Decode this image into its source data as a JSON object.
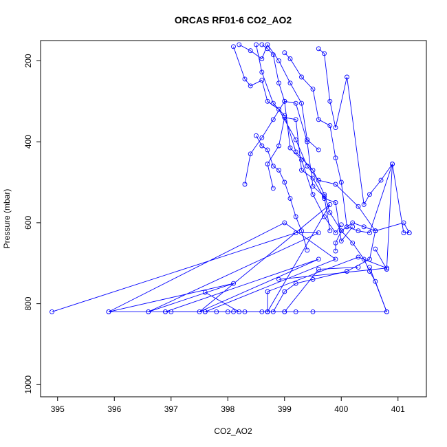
{
  "chart_data": {
    "type": "scatter",
    "title": "ORCAS RF01-6 CO2_AO2",
    "xlabel": "CO2_AO2",
    "ylabel": "Pressure (mbar)",
    "xlim": [
      394.7,
      401.5
    ],
    "ylim": [
      1030,
      150
    ],
    "y_reversed": true,
    "x_ticks": [
      395,
      396,
      397,
      398,
      399,
      400,
      401
    ],
    "x_tick_labels": [
      "395",
      "396",
      "397",
      "398",
      "399",
      "400",
      "401"
    ],
    "y_ticks": [
      200,
      400,
      600,
      800,
      1000
    ],
    "y_tick_labels": [
      "200",
      "400",
      "600",
      "800",
      "1000"
    ],
    "grid": false,
    "legend": "none",
    "color": "#0000ff",
    "series": [
      {
        "x": [
          398.1,
          398.3,
          398.4,
          398.6,
          398.7,
          398.9,
          399.2,
          399.4,
          399.6,
          399.9,
          400.3,
          400.6,
          401.1,
          401.2
        ],
        "y": [
          165,
          245,
          262,
          248,
          300,
          320,
          395,
          460,
          495,
          505,
          560,
          620,
          600,
          625
        ]
      },
      {
        "x": [
          398.5,
          398.6,
          398.8,
          399.0,
          399.2,
          399.5,
          399.7,
          399.8,
          400.0,
          400.2,
          400.4,
          400.5,
          400.6,
          400.8
        ],
        "y": [
          160,
          228,
          305,
          335,
          425,
          470,
          530,
          575,
          620,
          650,
          690,
          720,
          745,
          820
        ]
      },
      {
        "x": [
          399.0,
          399.1,
          399.3,
          399.5,
          399.6,
          399.8,
          399.9,
          400.0,
          400.1,
          400.3,
          400.5,
          400.9,
          400.8,
          400.6
        ],
        "y": [
          180,
          195,
          240,
          270,
          345,
          360,
          440,
          500,
          610,
          620,
          625,
          455,
          715,
          665
        ]
      },
      {
        "x": [
          399.6,
          399.7,
          399.8,
          399.9,
          400.1,
          400.4,
          400.5,
          400.7,
          400.9,
          401.1,
          401.2
        ],
        "y": [
          170,
          182,
          300,
          365,
          240,
          555,
          530,
          495,
          455,
          625,
          625
        ]
      },
      {
        "x": [
          398.3,
          398.4,
          398.6,
          398.8,
          399.0,
          399.1,
          399.3,
          399.5,
          399.7,
          399.9,
          400.0
        ],
        "y": [
          505,
          430,
          390,
          345,
          300,
          415,
          445,
          530,
          585,
          625,
          605
        ]
      },
      {
        "x": [
          398.8,
          398.7,
          398.9,
          399.0,
          399.2,
          399.3,
          399.5,
          399.7,
          399.9,
          400.0,
          400.2
        ],
        "y": [
          515,
          455,
          410,
          340,
          345,
          470,
          490,
          540,
          550,
          645,
          610
        ]
      },
      {
        "x": [
          399.4,
          399.3,
          399.2,
          399.1,
          399.0,
          398.9,
          398.8,
          398.7,
          398.6,
          398.5
        ],
        "y": [
          668,
          620,
          585,
          540,
          500,
          470,
          460,
          420,
          410,
          385
        ]
      },
      {
        "x": [
          399.9,
          399.9,
          400.0,
          400.1,
          400.2,
          400.4,
          400.6
        ],
        "y": [
          670,
          650,
          620,
          610,
          600,
          610,
          620
        ]
      },
      {
        "x": [
          394.9,
          399.2,
          399.6,
          396.6,
          398.1,
          395.9,
          399.0,
          399.9,
          397.6,
          396.9,
          399.6,
          397.5,
          399.8,
          398.7,
          398.7,
          400.3,
          400.8,
          398.9
        ],
        "y": [
          820,
          625,
          625,
          820,
          750,
          820,
          600,
          690,
          820,
          820,
          690,
          820,
          555,
          820,
          770,
          685,
          712,
          740
        ]
      },
      {
        "x": [
          395.9,
          396.6,
          397.0,
          397.6,
          398.0,
          398.3,
          398.7,
          399.0,
          399.2,
          399.5,
          400.8,
          400.5
        ],
        "y": [
          820,
          820,
          820,
          820,
          820,
          820,
          820,
          820,
          820,
          820,
          820,
          710
        ]
      },
      {
        "x": [
          396.9,
          397.8,
          398.1,
          398.6,
          398.8,
          399.0,
          399.2,
          399.5,
          400.1,
          400.5,
          400.6
        ],
        "y": [
          820,
          820,
          820,
          820,
          820,
          770,
          750,
          740,
          720,
          690,
          620
        ]
      },
      {
        "x": [
          397.6,
          398.2,
          398.7,
          399.0,
          399.6,
          400.3
        ],
        "y": [
          772,
          820,
          820,
          820,
          715,
          710
        ]
      },
      {
        "x": [
          398.2,
          398.4,
          398.6,
          398.7,
          398.9,
          399.1,
          399.3,
          399.4,
          399.6
        ],
        "y": [
          160,
          175,
          195,
          160,
          200,
          255,
          305,
          395,
          420
        ]
      },
      {
        "x": [
          398.6,
          398.7,
          398.8,
          398.9,
          399.0,
          399.2,
          399.4,
          399.5,
          399.7,
          399.8
        ],
        "y": [
          160,
          170,
          185,
          255,
          300,
          305,
          400,
          510,
          535,
          620
        ]
      }
    ]
  }
}
